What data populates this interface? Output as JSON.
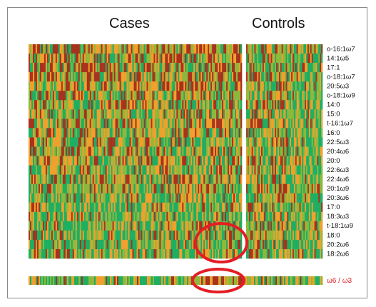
{
  "chart_data": {
    "type": "heatmap",
    "column_groups": [
      "Cases",
      "Controls"
    ],
    "columns_cases": 150,
    "columns_controls": 56,
    "rows": [
      "o-16:1ω7",
      "14:1ω5",
      "17:1",
      "o-18:1ω7",
      "20:5ω3",
      "o-18:1ω9",
      "14:0",
      "15:0",
      "t-16:1ω7",
      "16:0",
      "22:5ω3",
      "20:4ω6",
      "20:0",
      "22:6ω3",
      "22:4ω6",
      "20:1ω9",
      "20:3ω6",
      "17:0",
      "18:3ω3",
      "t-18:1ω9",
      "18:0",
      "20:2ω6",
      "18:2ω6"
    ],
    "ratio_label": "ω6 / ω3",
    "colors": {
      "low": "#1fae62",
      "mid_low": "#8cb83c",
      "mid": "#f0a02c",
      "high": "#a8321d",
      "highlight_circle": "#e31e24",
      "ratio_label": "#e31e24"
    },
    "annotations": [
      "circle around rows 18:0 to 18:2ω6 at the case/control boundary",
      "circle around the ω6/ω3 bar at the case/control boundary"
    ]
  }
}
